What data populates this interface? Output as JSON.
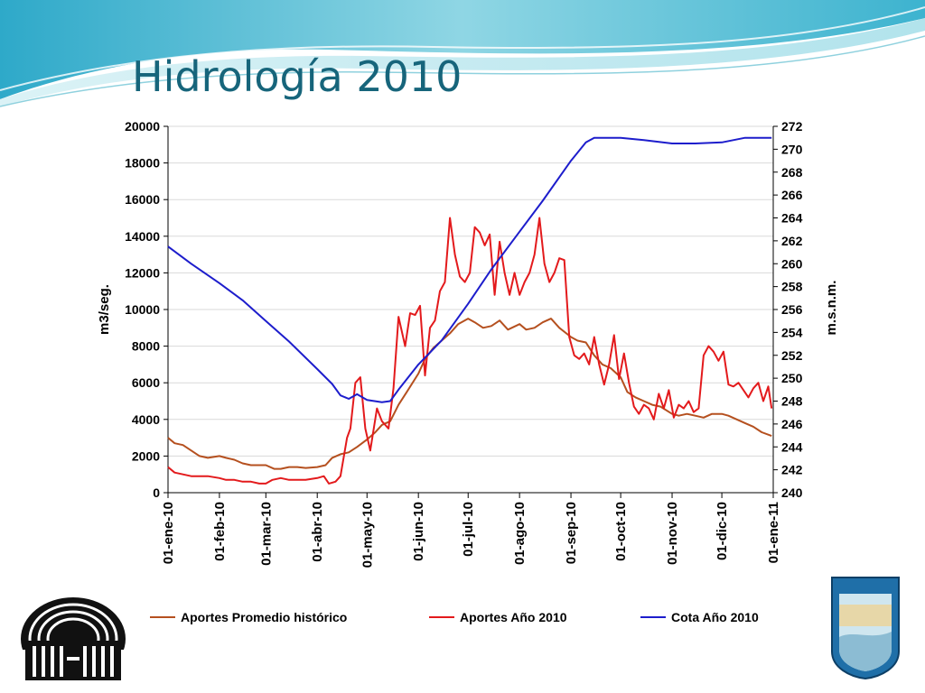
{
  "slide": {
    "title": "Hidrología 2010"
  },
  "colors": {
    "banner_light": "#bfe9f0",
    "banner_mid": "#7fcfdf",
    "title": "#17657b",
    "historico": "#b5501f",
    "anio2010": "#e31a1c",
    "cota": "#1d1dcc"
  },
  "chart_data": {
    "type": "line",
    "title": "",
    "xlabel": "",
    "ylabel": "m3/seg.",
    "y2label": "m.s.n.m.",
    "xlim": [
      "2010-01-01",
      "2011-01-01"
    ],
    "ylim": [
      0,
      20000
    ],
    "y2lim": [
      240,
      272
    ],
    "x_ticks": [
      "01-ene-10",
      "01-feb-10",
      "01-mar-10",
      "01-abr-10",
      "01-may-10",
      "01-jun-10",
      "01-jul-10",
      "01-ago-10",
      "01-sep-10",
      "01-oct-10",
      "01-nov-10",
      "01-dic-10",
      "01-ene-11"
    ],
    "y_ticks": [
      "0",
      "2000",
      "4000",
      "6000",
      "8000",
      "10000",
      "12000",
      "14000",
      "16000",
      "18000",
      "20000"
    ],
    "y2_ticks": [
      "240",
      "242",
      "244",
      "246",
      "248",
      "250",
      "252",
      "254",
      "256",
      "258",
      "260",
      "262",
      "264",
      "266",
      "268",
      "270",
      "272"
    ],
    "grid": "horizontal",
    "legend_position": "bottom",
    "series": [
      {
        "name": "Aportes Promedio histórico",
        "axis": "left",
        "color": "#b5501f",
        "x": [
          "2010-01-01",
          "2010-01-05",
          "2010-01-10",
          "2010-01-15",
          "2010-01-20",
          "2010-01-25",
          "2010-02-01",
          "2010-02-05",
          "2010-02-10",
          "2010-02-15",
          "2010-02-20",
          "2010-02-25",
          "2010-03-01",
          "2010-03-06",
          "2010-03-10",
          "2010-03-15",
          "2010-03-20",
          "2010-03-25",
          "2010-04-01",
          "2010-04-06",
          "2010-04-10",
          "2010-04-15",
          "2010-04-20",
          "2010-04-25",
          "2010-05-01",
          "2010-05-06",
          "2010-05-10",
          "2010-05-15",
          "2010-05-20",
          "2010-05-25",
          "2010-06-01",
          "2010-06-05",
          "2010-06-10",
          "2010-06-15",
          "2010-06-20",
          "2010-06-25",
          "2010-07-01",
          "2010-07-05",
          "2010-07-10",
          "2010-07-15",
          "2010-07-20",
          "2010-07-25",
          "2010-08-01",
          "2010-08-05",
          "2010-08-10",
          "2010-08-15",
          "2010-08-20",
          "2010-08-25",
          "2010-09-01",
          "2010-09-05",
          "2010-09-10",
          "2010-09-15",
          "2010-09-20",
          "2010-09-25",
          "2010-10-01",
          "2010-10-05",
          "2010-10-10",
          "2010-10-15",
          "2010-10-20",
          "2010-10-25",
          "2010-11-01",
          "2010-11-05",
          "2010-11-10",
          "2010-11-15",
          "2010-11-20",
          "2010-11-25",
          "2010-12-01",
          "2010-12-05",
          "2010-12-10",
          "2010-12-15",
          "2010-12-20",
          "2010-12-25",
          "2010-12-31"
        ],
        "y": [
          3000,
          2700,
          2600,
          2300,
          2000,
          1900,
          2000,
          1900,
          1800,
          1600,
          1500,
          1500,
          1500,
          1300,
          1300,
          1400,
          1400,
          1350,
          1400,
          1500,
          1900,
          2100,
          2200,
          2500,
          2900,
          3300,
          3700,
          3900,
          4800,
          5500,
          6500,
          7300,
          7900,
          8300,
          8700,
          9200,
          9500,
          9300,
          9000,
          9100,
          9400,
          8900,
          9200,
          8900,
          9000,
          9300,
          9500,
          9000,
          8500,
          8300,
          8200,
          7500,
          7000,
          6800,
          6300,
          5500,
          5200,
          5000,
          4800,
          4700,
          4300,
          4200,
          4300,
          4200,
          4100,
          4300,
          4300,
          4200,
          4000,
          3800,
          3600,
          3300,
          3100
        ]
      },
      {
        "name": "Aportes Año 2010",
        "axis": "left",
        "color": "#e31a1c",
        "x": [
          "2010-01-01",
          "2010-01-05",
          "2010-01-10",
          "2010-01-15",
          "2010-01-20",
          "2010-01-25",
          "2010-02-01",
          "2010-02-05",
          "2010-02-10",
          "2010-02-15",
          "2010-02-20",
          "2010-02-25",
          "2010-03-01",
          "2010-03-05",
          "2010-03-10",
          "2010-03-15",
          "2010-03-20",
          "2010-03-25",
          "2010-04-01",
          "2010-04-05",
          "2010-04-08",
          "2010-04-12",
          "2010-04-15",
          "2010-04-19",
          "2010-04-21",
          "2010-04-24",
          "2010-04-27",
          "2010-04-30",
          "2010-05-03",
          "2010-05-07",
          "2010-05-10",
          "2010-05-14",
          "2010-05-17",
          "2010-05-20",
          "2010-05-24",
          "2010-05-27",
          "2010-05-30",
          "2010-06-02",
          "2010-06-05",
          "2010-06-08",
          "2010-06-11",
          "2010-06-14",
          "2010-06-17",
          "2010-06-20",
          "2010-06-23",
          "2010-06-26",
          "2010-06-29",
          "2010-07-02",
          "2010-07-05",
          "2010-07-08",
          "2010-07-11",
          "2010-07-14",
          "2010-07-17",
          "2010-07-20",
          "2010-07-23",
          "2010-07-26",
          "2010-07-29",
          "2010-08-01",
          "2010-08-04",
          "2010-08-07",
          "2010-08-10",
          "2010-08-13",
          "2010-08-16",
          "2010-08-19",
          "2010-08-22",
          "2010-08-25",
          "2010-08-28",
          "2010-08-31",
          "2010-09-03",
          "2010-09-06",
          "2010-09-09",
          "2010-09-12",
          "2010-09-15",
          "2010-09-18",
          "2010-09-21",
          "2010-09-24",
          "2010-09-27",
          "2010-09-30",
          "2010-10-03",
          "2010-10-06",
          "2010-10-09",
          "2010-10-12",
          "2010-10-15",
          "2010-10-18",
          "2010-10-21",
          "2010-10-24",
          "2010-10-27",
          "2010-10-30",
          "2010-11-02",
          "2010-11-05",
          "2010-11-08",
          "2010-11-11",
          "2010-11-14",
          "2010-11-17",
          "2010-11-20",
          "2010-11-23",
          "2010-11-26",
          "2010-11-29",
          "2010-12-02",
          "2010-12-05",
          "2010-12-08",
          "2010-12-11",
          "2010-12-14",
          "2010-12-17",
          "2010-12-20",
          "2010-12-23",
          "2010-12-26",
          "2010-12-29",
          "2010-12-31"
        ],
        "y": [
          1400,
          1100,
          1000,
          900,
          900,
          900,
          800,
          700,
          700,
          600,
          600,
          500,
          500,
          700,
          800,
          700,
          700,
          700,
          800,
          900,
          500,
          600,
          900,
          3000,
          3500,
          6000,
          6300,
          3500,
          2300,
          4600,
          3900,
          3500,
          5700,
          9600,
          8000,
          9800,
          9700,
          10200,
          6400,
          9000,
          9400,
          11000,
          11500,
          15000,
          13000,
          11800,
          11500,
          12000,
          14500,
          14200,
          13500,
          14100,
          10800,
          13700,
          12000,
          10800,
          12000,
          10800,
          11500,
          12000,
          13000,
          15000,
          12500,
          11500,
          12000,
          12800,
          12700,
          8500,
          7500,
          7300,
          7600,
          7000,
          8500,
          7000,
          5900,
          7000,
          8600,
          6200,
          7600,
          6000,
          4700,
          4300,
          4800,
          4600,
          4000,
          5400,
          4600,
          5600,
          4100,
          4800,
          4600,
          5000,
          4400,
          4600,
          7500,
          8000,
          7700,
          7200,
          7700,
          5900,
          5800,
          6000,
          5600,
          5200,
          5700,
          6000,
          5000,
          5800,
          4600
        ]
      },
      {
        "name": "Cota Año 2010",
        "axis": "right",
        "color": "#1d1dcc",
        "x": [
          "2010-01-01",
          "2010-01-15",
          "2010-02-01",
          "2010-02-15",
          "2010-03-01",
          "2010-03-15",
          "2010-04-01",
          "2010-04-10",
          "2010-04-15",
          "2010-04-20",
          "2010-04-25",
          "2010-05-01",
          "2010-05-10",
          "2010-05-15",
          "2010-05-20",
          "2010-06-01",
          "2010-06-15",
          "2010-07-01",
          "2010-07-15",
          "2010-08-01",
          "2010-08-15",
          "2010-09-01",
          "2010-09-10",
          "2010-09-15",
          "2010-10-01",
          "2010-10-15",
          "2010-11-01",
          "2010-11-15",
          "2010-12-01",
          "2010-12-15",
          "2010-12-31"
        ],
        "y": [
          261.5,
          260,
          258.3,
          256.8,
          255,
          253.2,
          250.8,
          249.5,
          248.5,
          248.2,
          248.6,
          248.1,
          247.9,
          248,
          249,
          251.2,
          253.3,
          256.5,
          259.5,
          262.8,
          265.5,
          269,
          270.6,
          271,
          271,
          270.8,
          270.5,
          270.5,
          270.6,
          271,
          271
        ]
      }
    ]
  }
}
